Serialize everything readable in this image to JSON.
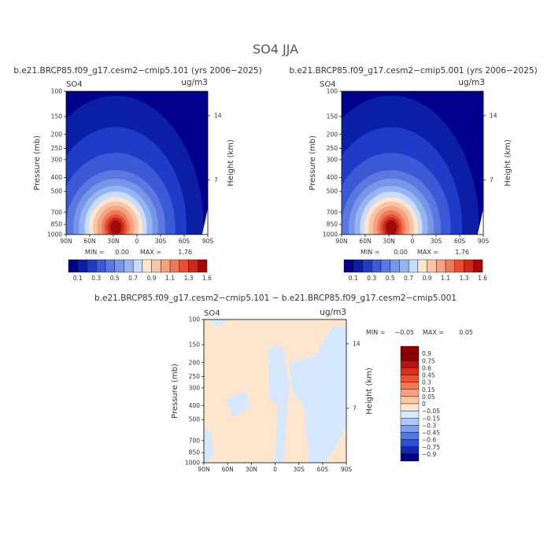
{
  "figure": {
    "title": "SO4  JJA"
  },
  "panels": [
    {
      "title": "b.e21.BRCP85.f09_g17.cesm2−cmip5.101 (yrs 2006−2025)",
      "field": "SO4",
      "units": "ug/m3",
      "ylabel": "Pressure (mb)",
      "y2label": "Height (km)",
      "min_label": "MIN =",
      "min_value": "0.00",
      "max_label": "MAX =",
      "max_value": "1.76"
    },
    {
      "title": "b.e21.BRCP85.f09_g17.cesm2−cmip5.001 (yrs 2006−2025)",
      "field": "SO4",
      "units": "ug/m3",
      "ylabel": "Pressure (mb)",
      "y2label": "Height (km)",
      "min_label": "MIN =",
      "min_value": "0.00",
      "max_label": "MAX =",
      "max_value": "1.76"
    },
    {
      "title": "b.e21.BRCP85.f09_g17.cesm2−cmip5.101 − b.e21.BRCP85.f09_g17.cesm2−cmip5.001",
      "field": "SO4",
      "units": "ug/m3",
      "ylabel": "Pressure (mb)",
      "y2label": "Height (km)",
      "min_label": "MIN =",
      "min_value": "−0.05",
      "max_label": "MAX =",
      "max_value": "0.05"
    }
  ],
  "chart_data": [
    {
      "type": "heatmap",
      "title": "b.e21.BRCP85.f09_g17.cesm2−cmip5.101 (yrs 2006−2025)",
      "xlabel": "",
      "ylabel": "Pressure (mb)",
      "y2label": "Height (km)",
      "x_ticks": [
        "90N",
        "60N",
        "30N",
        "0",
        "30S",
        "60S",
        "90S"
      ],
      "y_ticks": [
        "100",
        "150",
        "200",
        "250",
        "300",
        "400",
        "500",
        "700",
        "850",
        "1000"
      ],
      "y2_ticks": [
        "14",
        "7"
      ],
      "ylim": [
        1000,
        100
      ],
      "yscale": "log",
      "colorbar_levels": [
        "0.1",
        "0.3",
        "0.5",
        "0.7",
        "0.9",
        "1.1",
        "1.3",
        "1.6"
      ],
      "min": 0.0,
      "max": 1.76,
      "peak": {
        "lat": "30N",
        "pressure": 850,
        "value": 1.76
      }
    },
    {
      "type": "heatmap",
      "title": "b.e21.BRCP85.f09_g17.cesm2−cmip5.001 (yrs 2006−2025)",
      "xlabel": "",
      "ylabel": "Pressure (mb)",
      "y2label": "Height (km)",
      "x_ticks": [
        "90N",
        "60N",
        "30N",
        "0",
        "30S",
        "60S",
        "90S"
      ],
      "y_ticks": [
        "100",
        "150",
        "200",
        "250",
        "300",
        "400",
        "500",
        "700",
        "850",
        "1000"
      ],
      "y2_ticks": [
        "14",
        "7"
      ],
      "ylim": [
        1000,
        100
      ],
      "yscale": "log",
      "colorbar_levels": [
        "0.1",
        "0.3",
        "0.5",
        "0.7",
        "0.9",
        "1.1",
        "1.3",
        "1.6"
      ],
      "min": 0.0,
      "max": 1.76,
      "peak": {
        "lat": "30N",
        "pressure": 850,
        "value": 1.76
      }
    },
    {
      "type": "heatmap",
      "title": "b.e21.BRCP85.f09_g17.cesm2−cmip5.101 − b.e21.BRCP85.f09_g17.cesm2−cmip5.001",
      "xlabel": "",
      "ylabel": "Pressure (mb)",
      "y2label": "Height (km)",
      "x_ticks": [
        "90N",
        "60N",
        "30N",
        "0",
        "30S",
        "60S",
        "90S"
      ],
      "y_ticks": [
        "100",
        "150",
        "200",
        "250",
        "300",
        "400",
        "500",
        "700",
        "850",
        "1000"
      ],
      "y2_ticks": [
        "14",
        "7"
      ],
      "ylim": [
        1000,
        100
      ],
      "yscale": "log",
      "colorbar_levels": [
        "0.9",
        "0.75",
        "0.6",
        "0.45",
        "0.3",
        "0.15",
        "0.05",
        "0",
        "−0.05",
        "−0.15",
        "−0.3",
        "−0.45",
        "−0.6",
        "−0.75",
        "−0.9"
      ],
      "min": -0.05,
      "max": 0.05
    }
  ],
  "colors": {
    "seq": [
      "#00008c",
      "#0a1ea6",
      "#1e3cc8",
      "#3c5ad6",
      "#5a78e0",
      "#7896e8",
      "#96b4f0",
      "#c8dcff",
      "#fde6cc",
      "#f8c4a6",
      "#f4a280",
      "#ee7a5a",
      "#e65032",
      "#cc2a18",
      "#a00a08"
    ],
    "diff": [
      "#8c0000",
      "#b41414",
      "#dc2c1e",
      "#ee5032",
      "#f47850",
      "#f8a080",
      "#fcc8a8",
      "#fde6cc",
      "#d6e8ff",
      "#aac8f8",
      "#7aa0ee",
      "#4e7ae4",
      "#2a50d6",
      "#1428b4",
      "#00008c"
    ]
  }
}
